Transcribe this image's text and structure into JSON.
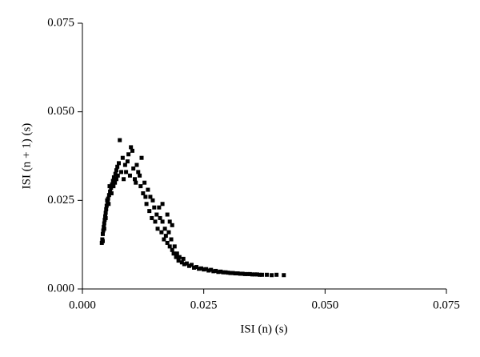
{
  "chart_data": {
    "type": "scatter",
    "xlabel": "ISI (n) (s)",
    "ylabel": "ISI (n + 1) (s)",
    "color": "#000000",
    "xlim": [
      0,
      0.075
    ],
    "ylim": [
      0,
      0.075
    ],
    "xticks": [
      {
        "value": 0,
        "label": "0.000"
      },
      {
        "value": 0.025,
        "label": "0.025"
      },
      {
        "value": 0.05,
        "label": "0.050"
      },
      {
        "value": 0.075,
        "label": "0.075"
      }
    ],
    "yticks": [
      {
        "value": 0,
        "label": "0.000"
      },
      {
        "value": 0.025,
        "label": "0.025"
      },
      {
        "value": 0.05,
        "label": "0.050"
      },
      {
        "value": 0.075,
        "label": "0.075"
      }
    ],
    "grid": false,
    "x": [
      0.004,
      0.0041,
      0.0042,
      0.0043,
      0.0044,
      0.0045,
      0.0046,
      0.0047,
      0.0048,
      0.0049,
      0.005,
      0.0052,
      0.0053,
      0.0055,
      0.0057,
      0.0059,
      0.0061,
      0.0063,
      0.0065,
      0.0068,
      0.007,
      0.0072,
      0.0075,
      0.0042,
      0.0045,
      0.0048,
      0.0051,
      0.0054,
      0.0056,
      0.006,
      0.0064,
      0.0067,
      0.007,
      0.0073,
      0.0077,
      0.008,
      0.0083,
      0.0085,
      0.0088,
      0.009,
      0.0093,
      0.0095,
      0.0098,
      0.01,
      0.0103,
      0.0105,
      0.0108,
      0.011,
      0.0112,
      0.0115,
      0.0118,
      0.012,
      0.0122,
      0.0125,
      0.0128,
      0.013,
      0.0132,
      0.0135,
      0.0138,
      0.014,
      0.0143,
      0.0145,
      0.0148,
      0.015,
      0.0153,
      0.0155,
      0.0158,
      0.016,
      0.0163,
      0.0165,
      0.0168,
      0.017,
      0.0172,
      0.0175,
      0.0178,
      0.018,
      0.0183,
      0.0185,
      0.0188,
      0.019,
      0.0193,
      0.0195,
      0.0198,
      0.02,
      0.0205,
      0.0208,
      0.021,
      0.0215,
      0.022,
      0.0225,
      0.023,
      0.0235,
      0.024,
      0.0245,
      0.025,
      0.0255,
      0.026,
      0.0265,
      0.027,
      0.0275,
      0.028,
      0.0285,
      0.029,
      0.0295,
      0.03,
      0.0305,
      0.031,
      0.0315,
      0.032,
      0.0325,
      0.033,
      0.0335,
      0.034,
      0.0345,
      0.035,
      0.0355,
      0.036,
      0.0365,
      0.037,
      0.038,
      0.039,
      0.04,
      0.0415,
      0.0175,
      0.018,
      0.0185,
      0.0165
    ],
    "y": [
      0.013,
      0.014,
      0.0155,
      0.0165,
      0.0175,
      0.0185,
      0.0195,
      0.0205,
      0.0215,
      0.0225,
      0.0235,
      0.0245,
      0.0255,
      0.0265,
      0.0275,
      0.0285,
      0.0295,
      0.0305,
      0.0315,
      0.0325,
      0.0335,
      0.0345,
      0.0355,
      0.0135,
      0.017,
      0.02,
      0.025,
      0.024,
      0.029,
      0.027,
      0.029,
      0.03,
      0.031,
      0.032,
      0.042,
      0.033,
      0.037,
      0.031,
      0.035,
      0.033,
      0.036,
      0.038,
      0.032,
      0.04,
      0.039,
      0.034,
      0.031,
      0.03,
      0.035,
      0.033,
      0.032,
      0.029,
      0.037,
      0.027,
      0.03,
      0.026,
      0.024,
      0.028,
      0.022,
      0.026,
      0.02,
      0.025,
      0.023,
      0.019,
      0.021,
      0.017,
      0.023,
      0.02,
      0.016,
      0.019,
      0.014,
      0.017,
      0.015,
      0.013,
      0.016,
      0.012,
      0.014,
      0.011,
      0.01,
      0.012,
      0.009,
      0.01,
      0.008,
      0.009,
      0.0075,
      0.0085,
      0.007,
      0.0072,
      0.0065,
      0.0068,
      0.006,
      0.0062,
      0.0057,
      0.0058,
      0.0055,
      0.0056,
      0.0052,
      0.0054,
      0.005,
      0.0051,
      0.0048,
      0.0049,
      0.0047,
      0.0047,
      0.0046,
      0.0045,
      0.0045,
      0.0044,
      0.0044,
      0.0043,
      0.0043,
      0.0042,
      0.0042,
      0.0042,
      0.0041,
      0.0041,
      0.0041,
      0.004,
      0.004,
      0.004,
      0.0039,
      0.004,
      0.0039,
      0.021,
      0.019,
      0.018,
      0.024
    ]
  }
}
